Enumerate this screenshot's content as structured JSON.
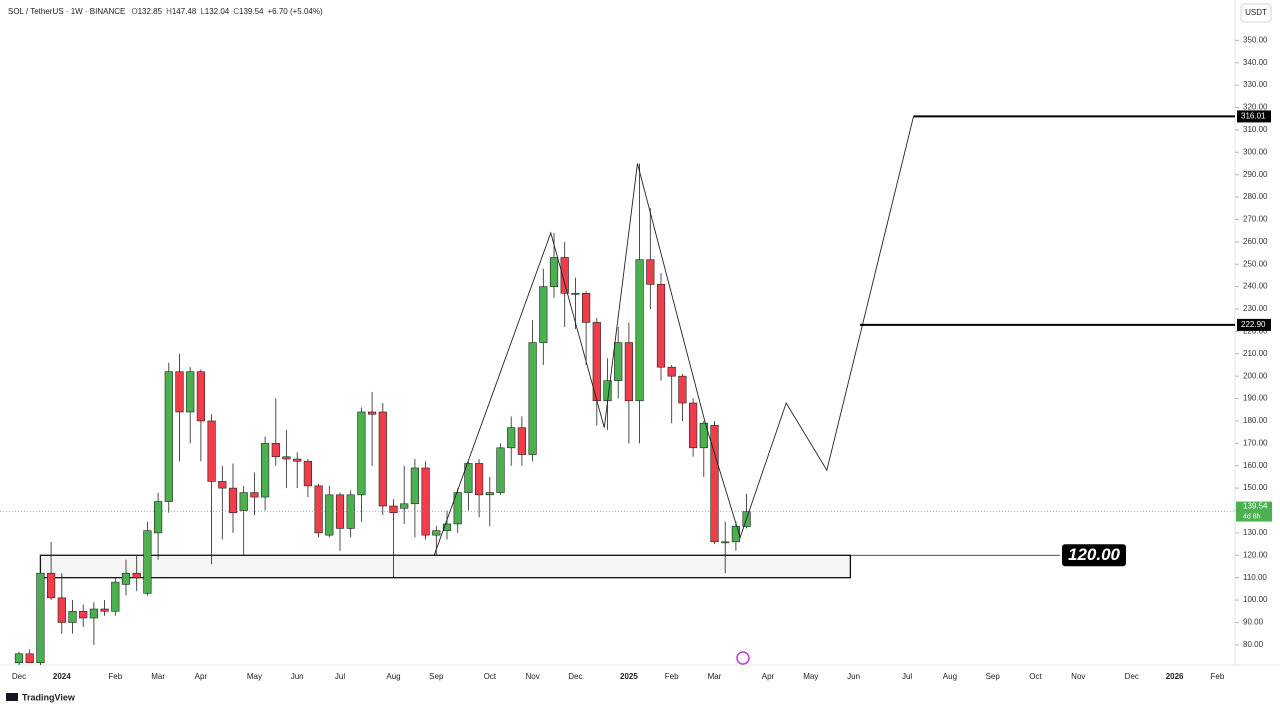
{
  "chart_data": {
    "type": "candlestick",
    "title": "SOL / TetherUS · 1W · BINANCE",
    "ohlc_letters": [
      "O",
      "H",
      "L",
      "C"
    ],
    "change": "+6.70 (+5.04%)",
    "y_unit": "USDT",
    "brand": "TradingView",
    "countdown": "4d 8h",
    "up_color": "#4caf50",
    "down_color": "#ef3e4a",
    "categories": [
      "Dec",
      null,
      null,
      null,
      "2024",
      null,
      null,
      null,
      null,
      "Feb",
      null,
      null,
      null,
      "Mar",
      null,
      null,
      null,
      "Apr",
      null,
      null,
      null,
      null,
      "May",
      null,
      null,
      null,
      "Jun",
      null,
      null,
      null,
      "Jul",
      null,
      null,
      null,
      null,
      "Aug",
      null,
      null,
      null,
      "Sep",
      null,
      null,
      null,
      null,
      "Oct",
      null,
      null,
      null,
      "Nov",
      null,
      null,
      null,
      "Dec",
      null,
      null,
      null,
      null,
      "2025",
      null,
      null,
      null,
      "Feb",
      null,
      null,
      null,
      "Mar",
      null,
      null,
      null,
      null,
      "Apr",
      null,
      null,
      null,
      "May",
      null,
      null,
      null,
      "Jun",
      null,
      null,
      null,
      null,
      "Jul",
      null,
      null,
      null,
      "Aug",
      null,
      null,
      null,
      "Sep",
      null,
      null,
      null,
      "Oct",
      null,
      null,
      null,
      "Nov",
      null,
      null,
      null,
      null,
      "Dec",
      null,
      null,
      null,
      "2026",
      null,
      null,
      null,
      "Feb"
    ],
    "open": [
      72,
      76,
      72,
      112,
      101,
      90,
      95,
      92,
      96,
      95,
      107,
      112,
      103,
      130,
      144,
      202,
      184,
      202,
      180,
      153,
      150,
      140,
      148,
      146,
      170,
      164,
      163,
      162,
      151,
      129,
      147,
      132,
      147,
      184,
      184,
      142,
      141,
      143,
      159,
      129,
      131,
      134,
      148,
      161,
      147,
      148,
      168,
      177,
      165,
      215,
      240,
      253,
      237,
      237,
      224,
      189,
      198,
      215,
      189,
      252,
      241,
      204,
      200,
      188,
      168,
      178,
      126,
      126,
      132.85,
      null,
      null,
      null,
      null,
      null,
      null,
      null,
      null,
      null,
      null,
      null,
      null,
      null,
      null,
      null,
      null,
      null,
      null,
      null,
      null,
      null,
      null,
      null,
      null,
      null,
      null,
      null,
      null,
      null,
      null,
      null,
      null,
      null,
      null,
      null,
      null,
      null,
      null,
      null,
      null,
      null,
      null,
      null,
      null
    ],
    "high": [
      77,
      78,
      113,
      126,
      112,
      100,
      98,
      99,
      100,
      110,
      118,
      120,
      135,
      148,
      206,
      210,
      204,
      203,
      183,
      160,
      161,
      151,
      157,
      173,
      190,
      176,
      166,
      163,
      152,
      151,
      148,
      149,
      186,
      193,
      188,
      145,
      160,
      163,
      162,
      133,
      140,
      150,
      162,
      163,
      155,
      170,
      182,
      182,
      225,
      248,
      264,
      260,
      244,
      238,
      226,
      208,
      222,
      224,
      295,
      275,
      246,
      205,
      201,
      190,
      180,
      180,
      135,
      135,
      147.48,
      null,
      null,
      null,
      null,
      null,
      null,
      null,
      null,
      null,
      null,
      null,
      null,
      null,
      null,
      null,
      null,
      null,
      null,
      null,
      null,
      null,
      null,
      null,
      null,
      null,
      null,
      null,
      null,
      null,
      null,
      null,
      null,
      null,
      null,
      null,
      null,
      null,
      null,
      null,
      null,
      null,
      null,
      null,
      null
    ],
    "low": [
      71,
      72,
      71,
      100,
      85,
      85,
      88,
      80,
      93,
      93,
      102,
      104,
      102,
      118,
      139,
      162,
      170,
      162,
      116,
      127,
      130,
      120,
      138,
      140,
      160,
      150,
      150,
      146,
      128,
      128,
      122,
      128,
      135,
      160,
      138,
      110,
      134,
      128,
      127,
      120,
      127,
      130,
      140,
      137,
      133,
      147,
      160,
      160,
      162,
      205,
      235,
      222,
      221,
      205,
      178,
      176,
      190,
      170,
      170,
      230,
      198,
      179,
      180,
      164,
      155,
      125,
      112,
      122,
      132.04,
      null,
      null,
      null,
      null,
      null,
      null,
      null,
      null,
      null,
      null,
      null,
      null,
      null,
      null,
      null,
      null,
      null,
      null,
      null,
      null,
      null,
      null,
      null,
      null,
      null,
      null,
      null,
      null,
      null,
      null,
      null,
      null,
      null,
      null,
      null,
      null,
      null,
      null,
      null,
      null,
      null,
      null,
      null,
      null
    ],
    "close": [
      76,
      72,
      112,
      101,
      90,
      95,
      92,
      96,
      95,
      108,
      112,
      110,
      131,
      144,
      202,
      184,
      202,
      180,
      153,
      150,
      139,
      148,
      146,
      170,
      164,
      163,
      162,
      151,
      130,
      147,
      132,
      147,
      184,
      183,
      142,
      139,
      143,
      159,
      129,
      131,
      134,
      148,
      161,
      147,
      148,
      168,
      177,
      165,
      215,
      240,
      253,
      237,
      237,
      224,
      189,
      198,
      215,
      189,
      252,
      241,
      204,
      200,
      188,
      168,
      179,
      126,
      126,
      133,
      139.54,
      null,
      null,
      null,
      null,
      null,
      null,
      null,
      null,
      null,
      null,
      null,
      null,
      null,
      null,
      null,
      null,
      null,
      null,
      null,
      null,
      null,
      null,
      null,
      null,
      null,
      null,
      null,
      null,
      null,
      null,
      null,
      null,
      null,
      null,
      null,
      null,
      null,
      null,
      null,
      null,
      null,
      null,
      null,
      null
    ],
    "ylim": [
      71,
      368
    ],
    "yticks": [
      {
        "value": 80,
        "label": "80.00"
      },
      {
        "value": 90,
        "label": "90.00"
      },
      {
        "value": 100,
        "label": "100.00"
      },
      {
        "value": 110,
        "label": "110.00"
      },
      {
        "value": 120,
        "label": "120.00"
      },
      {
        "value": 130,
        "label": "130.00"
      },
      {
        "value": 140,
        "label": "140.00"
      },
      {
        "value": 150,
        "label": "150.00"
      },
      {
        "value": 160,
        "label": "160.00"
      },
      {
        "value": 170,
        "label": "170.00"
      },
      {
        "value": 180,
        "label": "180.00"
      },
      {
        "value": 190,
        "label": "190.00"
      },
      {
        "value": 200,
        "label": "200.00"
      },
      {
        "value": 210,
        "label": "210.00"
      },
      {
        "value": 220,
        "label": "220.00"
      },
      {
        "value": 230,
        "label": "230.00"
      },
      {
        "value": 240,
        "label": "240.00"
      },
      {
        "value": 250,
        "label": "250.00"
      },
      {
        "value": 260,
        "label": "260.00"
      },
      {
        "value": 270,
        "label": "270.00"
      },
      {
        "value": 280,
        "label": "280.00"
      },
      {
        "value": 290,
        "label": "290.00"
      },
      {
        "value": 300,
        "label": "300.00"
      },
      {
        "value": 310,
        "label": "310.00"
      },
      {
        "value": 320,
        "label": "320.00"
      },
      {
        "value": 330,
        "label": "330.00"
      },
      {
        "value": 340,
        "label": "340.00"
      },
      {
        "value": 350,
        "label": "350.00"
      }
    ],
    "projection": {
      "x": [
        38.8,
        49.7,
        54.7,
        57.8,
        64.2,
        67.4,
        71.7,
        75.5,
        83.6
      ],
      "y": [
        120,
        264,
        177,
        295,
        178,
        128,
        188,
        158,
        316
      ]
    },
    "levels": [
      {
        "value": 316.01,
        "from": 83.6
      },
      {
        "value": 222.9,
        "label": "222.90",
        "from": 78.6
      }
    ],
    "zone": {
      "low": 110,
      "high": 120,
      "label": "120.00",
      "from": 2,
      "to": 77.7,
      "line_from": 38.8,
      "line_to": 97.3
    }
  }
}
